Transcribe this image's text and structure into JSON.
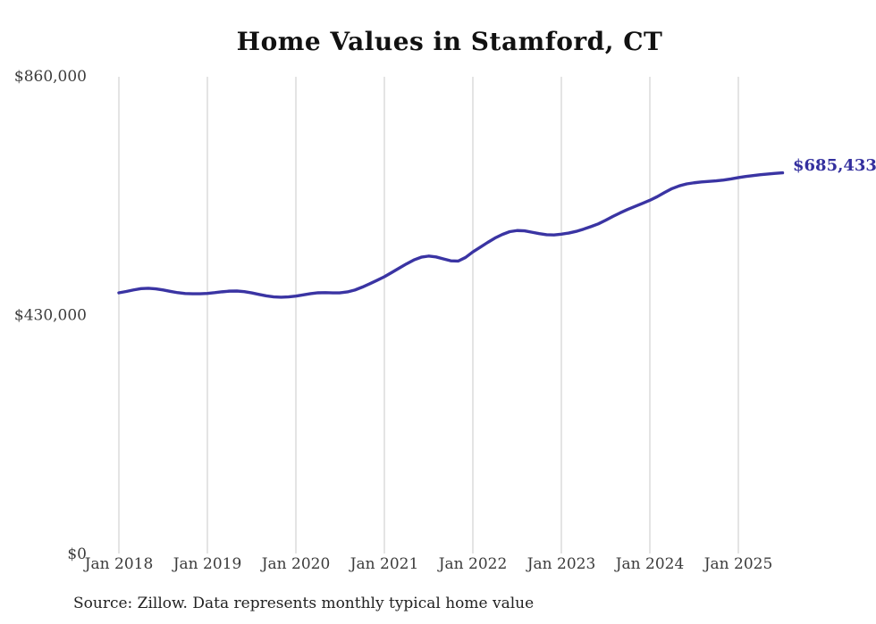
{
  "title": "Home Values in Stamford, CT",
  "end_label": "$685,433",
  "source_note": "Source: Zillow. Data represents monthly typical home value",
  "colors": {
    "line": "#3a34a3",
    "end_label_text": "#332f9e",
    "gridline": "#c9c9c9",
    "axis_label": "#3b3b3b",
    "title_text": "#111111",
    "background": "#ffffff"
  },
  "chart_data": {
    "type": "line",
    "title": "Home Values in Stamford, CT",
    "xlabel": "",
    "ylabel": "",
    "ylim": [
      0,
      860000
    ],
    "grid": "vertical-only",
    "legend": "none",
    "series_label": "Monthly typical home value",
    "end_annotation": "$685,433",
    "y_ticks": [
      {
        "value": 0,
        "label": "$0"
      },
      {
        "value": 430000,
        "label": "$430,000"
      },
      {
        "value": 860000,
        "label": "$860,000"
      }
    ],
    "x_ticks": [
      {
        "index": 0,
        "label": "Jan 2018"
      },
      {
        "index": 12,
        "label": "Jan 2019"
      },
      {
        "index": 24,
        "label": "Jan 2020"
      },
      {
        "index": 36,
        "label": "Jan 2021"
      },
      {
        "index": 48,
        "label": "Jan 2022"
      },
      {
        "index": 60,
        "label": "Jan 2023"
      },
      {
        "index": 72,
        "label": "Jan 2024"
      },
      {
        "index": 84,
        "label": "Jan 2025"
      }
    ],
    "x": [
      "Jan 2018",
      "Feb 2018",
      "Mar 2018",
      "Apr 2018",
      "May 2018",
      "Jun 2018",
      "Jul 2018",
      "Aug 2018",
      "Sep 2018",
      "Oct 2018",
      "Nov 2018",
      "Dec 2018",
      "Jan 2019",
      "Feb 2019",
      "Mar 2019",
      "Apr 2019",
      "May 2019",
      "Jun 2019",
      "Jul 2019",
      "Aug 2019",
      "Sep 2019",
      "Oct 2019",
      "Nov 2019",
      "Dec 2019",
      "Jan 2020",
      "Feb 2020",
      "Mar 2020",
      "Apr 2020",
      "May 2020",
      "Jun 2020",
      "Jul 2020",
      "Aug 2020",
      "Sep 2020",
      "Oct 2020",
      "Nov 2020",
      "Dec 2020",
      "Jan 2021",
      "Feb 2021",
      "Mar 2021",
      "Apr 2021",
      "May 2021",
      "Jun 2021",
      "Jul 2021",
      "Aug 2021",
      "Sep 2021",
      "Oct 2021",
      "Nov 2021",
      "Dec 2021",
      "Jan 2022",
      "Feb 2022",
      "Mar 2022",
      "Apr 2022",
      "May 2022",
      "Jun 2022",
      "Jul 2022",
      "Aug 2022",
      "Sep 2022",
      "Oct 2022",
      "Nov 2022",
      "Dec 2022",
      "Jan 2023",
      "Feb 2023",
      "Mar 2023",
      "Apr 2023",
      "May 2023",
      "Jun 2023",
      "Jul 2023",
      "Aug 2023",
      "Sep 2023",
      "Oct 2023",
      "Nov 2023",
      "Dec 2023",
      "Jan 2024",
      "Feb 2024",
      "Mar 2024",
      "Apr 2024",
      "May 2024",
      "Jun 2024",
      "Jul 2024",
      "Aug 2024",
      "Sep 2024",
      "Oct 2024",
      "Nov 2024",
      "Dec 2024",
      "Jan 2025",
      "Feb 2025",
      "Mar 2025",
      "Apr 2025",
      "May 2025",
      "Jun 2025",
      "Jul 2025"
    ],
    "values": [
      469400,
      471800,
      474600,
      476900,
      477600,
      476600,
      474500,
      471900,
      469600,
      468100,
      467600,
      467700,
      468300,
      469600,
      471200,
      472400,
      472600,
      471500,
      469300,
      466500,
      463900,
      462100,
      461500,
      462000,
      463400,
      465600,
      467900,
      469400,
      469700,
      469300,
      469400,
      471000,
      474400,
      479600,
      485500,
      491800,
      498300,
      506000,
      513800,
      521500,
      528500,
      533500,
      535500,
      534000,
      530500,
      527000,
      526500,
      533000,
      543000,
      551500,
      560000,
      568000,
      574500,
      579500,
      581500,
      581000,
      578500,
      576000,
      574000,
      573500,
      575000,
      577000,
      580000,
      584000,
      588500,
      593500,
      600000,
      607000,
      613500,
      619500,
      625000,
      630500,
      636000,
      642500,
      650000,
      657000,
      662000,
      665500,
      667500,
      669000,
      670000,
      671000,
      672500,
      674500,
      676800,
      678800,
      680500,
      682000,
      683200,
      684400,
      685433
    ]
  }
}
